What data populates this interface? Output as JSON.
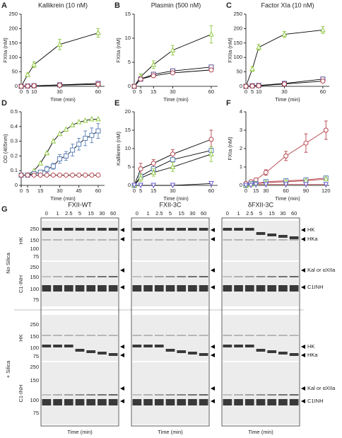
{
  "chart_data": [
    {
      "type": "line",
      "panel": "A",
      "title": "Kallikrein (10 nM)",
      "xlabel": "Time (min)",
      "ylabel": "FXIIa (nM)",
      "xlim": [
        0,
        65
      ],
      "xticks": [
        0,
        5,
        10,
        30,
        60
      ],
      "ylim": [
        0,
        250
      ],
      "yticks": [
        0,
        50,
        100,
        150,
        200,
        250
      ],
      "line_color": "#000000",
      "x": [
        0,
        5,
        10,
        30,
        60
      ],
      "series": [
        {
          "color": "#8dc63f",
          "marker": "triangle",
          "values": [
            0,
            40,
            75,
            145,
            185
          ],
          "errors": [
            0,
            6,
            10,
            18,
            15
          ]
        },
        {
          "color": "#5b4a8b",
          "marker": "square",
          "values": [
            0,
            1,
            2,
            5,
            10
          ]
        },
        {
          "color": "#b5424a",
          "marker": "circle",
          "values": [
            0,
            1,
            2,
            4,
            7
          ]
        }
      ]
    },
    {
      "type": "line",
      "panel": "B",
      "title": "Plasmin (500 nM)",
      "xlabel": "Time (min)",
      "ylabel": "FXIIa (nM)",
      "xlim": [
        0,
        65
      ],
      "xticks": [
        0,
        5,
        15,
        30,
        60
      ],
      "ylim": [
        0,
        15
      ],
      "yticks": [
        0,
        5,
        10,
        15
      ],
      "line_color": "#000000",
      "x": [
        0,
        5,
        15,
        30,
        60
      ],
      "series": [
        {
          "color": "#8dc63f",
          "marker": "triangle",
          "values": [
            0,
            2,
            4.5,
            7.5,
            10.8
          ],
          "errors": [
            0,
            0.6,
            0.8,
            1,
            1.8
          ]
        },
        {
          "color": "#5b4a8b",
          "marker": "square",
          "values": [
            0,
            1.5,
            2.5,
            3.2,
            4
          ]
        },
        {
          "color": "#b5424a",
          "marker": "circle",
          "values": [
            0,
            1.5,
            2.2,
            2.8,
            3.4
          ]
        }
      ]
    },
    {
      "type": "line",
      "panel": "C",
      "title": "Factor XIa (10 nM)",
      "xlabel": "Time (min)",
      "ylabel": "FXIIa (nM)",
      "xlim": [
        0,
        65
      ],
      "xticks": [
        0,
        5,
        10,
        30,
        60
      ],
      "ylim": [
        0,
        250
      ],
      "yticks": [
        0,
        50,
        100,
        150,
        200,
        250
      ],
      "line_color": "#000000",
      "x": [
        0,
        5,
        10,
        30,
        60
      ],
      "series": [
        {
          "color": "#8dc63f",
          "marker": "triangle",
          "values": [
            0,
            60,
            135,
            180,
            195
          ],
          "errors": [
            0,
            8,
            10,
            10,
            12
          ]
        },
        {
          "color": "#5b4a8b",
          "marker": "square",
          "values": [
            0,
            2,
            3,
            10,
            25
          ]
        },
        {
          "color": "#b5424a",
          "marker": "circle",
          "values": [
            0,
            1,
            2,
            8,
            18
          ]
        }
      ]
    },
    {
      "type": "line",
      "panel": "D",
      "xlabel": "Time (min)",
      "ylabel": "OD (405nm)",
      "xlim": [
        0,
        65
      ],
      "xticks": [
        0,
        5,
        15,
        30,
        45,
        60
      ],
      "ylim": [
        0,
        0.5
      ],
      "yticks": [
        0,
        0.1,
        0.2,
        0.3,
        0.4,
        0.5
      ],
      "line_color": "#000000",
      "x": [
        0,
        5,
        10,
        15,
        20,
        25,
        30,
        35,
        40,
        45,
        50,
        55,
        60
      ],
      "series": [
        {
          "color": "#8dc63f",
          "marker": "triangle",
          "values": [
            0.07,
            0.07,
            0.1,
            0.15,
            0.22,
            0.3,
            0.35,
            0.38,
            0.41,
            0.43,
            0.44,
            0.45,
            0.45
          ]
        },
        {
          "color": "#5b7fb5",
          "marker": "square",
          "values": [
            0.07,
            0.07,
            0.08,
            0.09,
            0.11,
            0.13,
            0.18,
            0.2,
            0.24,
            0.28,
            0.32,
            0.34,
            0.37
          ],
          "errors": [
            0,
            0,
            0.01,
            0.01,
            0.02,
            0.02,
            0.03,
            0.03,
            0.04,
            0.04,
            0.05,
            0.05,
            0.05
          ]
        },
        {
          "color": "#b5424a",
          "marker": "circle",
          "values": [
            0.07,
            0.07,
            0.07,
            0.07,
            0.07,
            0.07,
            0.07,
            0.07,
            0.07,
            0.07,
            0.07,
            0.07,
            0.07
          ]
        }
      ]
    },
    {
      "type": "line",
      "panel": "E",
      "xlabel": "Time (min)",
      "ylabel": "Kallikrein (nM)",
      "xlim": [
        0,
        65
      ],
      "xticks": [
        0,
        5,
        15,
        30,
        60
      ],
      "ylim": [
        0,
        20
      ],
      "yticks": [
        0,
        5,
        10,
        15,
        20
      ],
      "line_color": "#000000",
      "x": [
        0,
        5,
        15,
        30,
        60
      ],
      "series": [
        {
          "color": "#b5424a",
          "marker": "circle",
          "values": [
            0,
            4.5,
            6,
            8.5,
            12.5
          ],
          "errors": [
            0,
            1.5,
            1,
            1.2,
            2.5
          ]
        },
        {
          "color": "#5b7fb5",
          "marker": "square",
          "values": [
            0,
            2.5,
            4.5,
            7,
            9.5
          ]
        },
        {
          "color": "#8dc63f",
          "marker": "triangle",
          "values": [
            0,
            2,
            3.5,
            5,
            8.5
          ],
          "errors": [
            0,
            1,
            1,
            1.2,
            2
          ]
        },
        {
          "color": "#6a5acd",
          "marker": "triangle-down",
          "values": [
            0,
            0,
            0,
            0,
            0.5
          ]
        }
      ]
    },
    {
      "type": "line",
      "panel": "F",
      "xlabel": "Time (min)",
      "ylabel": "FXIa (nM)",
      "xlim": [
        0,
        125
      ],
      "xticks": [
        0,
        15,
        30,
        60,
        90,
        120
      ],
      "ylim": [
        0,
        4
      ],
      "yticks": [
        0,
        1,
        2,
        3,
        4
      ],
      "line_color": "#b5424a",
      "x": [
        0,
        7.5,
        15,
        30,
        60,
        90,
        120
      ],
      "series": [
        {
          "color": "#b5424a",
          "marker": "circle",
          "values": [
            0.1,
            0.2,
            0.3,
            0.7,
            1.6,
            2.3,
            3
          ],
          "errors": [
            0,
            0.05,
            0.1,
            0.15,
            0.25,
            0.5,
            0.5
          ]
        },
        {
          "color": "#5b7fb5",
          "marker": "square",
          "values": [
            0,
            0.1,
            0.1,
            0.2,
            0.25,
            0.3,
            0.4
          ]
        },
        {
          "color": "#8dc63f",
          "marker": "triangle",
          "values": [
            0,
            0.05,
            0.1,
            0.15,
            0.2,
            0.25,
            0.35
          ]
        },
        {
          "color": "#6a5acd",
          "marker": "triangle-down",
          "values": [
            0,
            0,
            0.05,
            0.05,
            0.05,
            0.05,
            0.05
          ]
        }
      ]
    }
  ],
  "panel_g": {
    "label": "G",
    "columns": [
      "FXII-WT",
      "FXII-3C",
      "δFXII-3C"
    ],
    "times": [
      "0",
      "1",
      "2.5",
      "5",
      "15",
      "30",
      "60"
    ],
    "conditions": [
      "No Silica",
      "+ Silica"
    ],
    "blot_rows": [
      "HK",
      "C1-INH"
    ],
    "markers": [
      "250",
      "150",
      "100",
      "75"
    ],
    "bands_hk": [
      "HK",
      "HKa"
    ],
    "bands_c1": [
      "Kal or αXIIa",
      "C1INH"
    ],
    "xlabel": "Time (min)"
  }
}
